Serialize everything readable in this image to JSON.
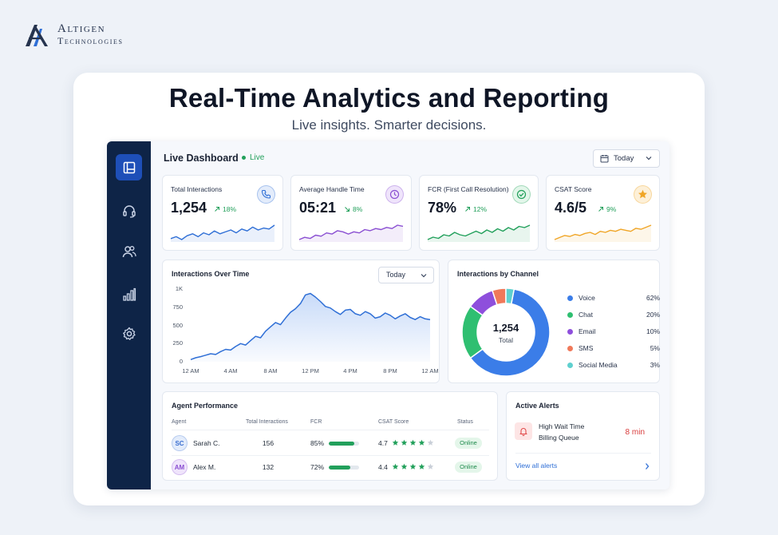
{
  "brand": {
    "line1": "Altigen",
    "line2": "Technologies"
  },
  "hero": {
    "title": "Real-Time Analytics and Reporting",
    "subtitle": "Live insights. Smarter decisions."
  },
  "dashboard": {
    "title": "Live Dashboard",
    "live_label": "Live",
    "date_filter": "Today",
    "sidebar": [
      "dashboard-icon",
      "headset-icon",
      "users-icon",
      "bar-chart-icon",
      "gear-icon"
    ]
  },
  "kpis": [
    {
      "title": "Total Interactions",
      "value": "1,254",
      "delta": "18%",
      "direction": "up",
      "icon": "phone-icon",
      "color": "#2f6fd6",
      "spark": [
        10,
        12,
        9,
        13,
        15,
        12,
        16,
        14,
        18,
        15,
        17,
        19,
        16,
        20,
        18,
        22,
        19,
        21,
        20,
        24
      ]
    },
    {
      "title": "Average Handle Time",
      "value": "05:21",
      "delta": "8%",
      "direction": "down",
      "icon": "clock-icon",
      "color": "#8a4fd2",
      "spark": [
        8,
        10,
        9,
        12,
        11,
        14,
        13,
        16,
        15,
        13,
        15,
        14,
        17,
        16,
        18,
        17,
        19,
        18,
        21,
        20
      ]
    },
    {
      "title": "FCR (First Call Resolution)",
      "value": "78%",
      "delta": "12%",
      "direction": "up",
      "icon": "check-circle-icon",
      "color": "#22a05b",
      "spark": [
        9,
        11,
        10,
        13,
        12,
        15,
        13,
        12,
        14,
        16,
        14,
        17,
        15,
        18,
        16,
        19,
        17,
        20,
        19,
        21
      ]
    },
    {
      "title": "CSAT Score",
      "value": "4.6/5",
      "delta": "9%",
      "direction": "up",
      "icon": "star-icon",
      "color": "#f0a526",
      "spark": [
        8,
        10,
        12,
        11,
        13,
        12,
        14,
        15,
        13,
        16,
        15,
        17,
        16,
        18,
        17,
        16,
        19,
        18,
        20,
        22
      ]
    }
  ],
  "interactions_over_time": {
    "title": "Interactions Over Time",
    "filter": "Today",
    "chart_data": {
      "type": "area",
      "y_ticks": [
        "1K",
        "750",
        "500",
        "250",
        "0"
      ],
      "x_ticks": [
        "12 AM",
        "4 AM",
        "8 AM",
        "12 PM",
        "4 PM",
        "8 PM",
        "12 AM"
      ],
      "ylim": [
        0,
        1000
      ],
      "xlim": [
        0,
        24
      ],
      "points": [
        [
          0,
          30
        ],
        [
          0.5,
          55
        ],
        [
          1,
          70
        ],
        [
          1.5,
          90
        ],
        [
          2,
          110
        ],
        [
          2.5,
          100
        ],
        [
          3,
          140
        ],
        [
          3.5,
          170
        ],
        [
          4,
          160
        ],
        [
          4.5,
          210
        ],
        [
          5,
          250
        ],
        [
          5.5,
          230
        ],
        [
          6,
          290
        ],
        [
          6.5,
          350
        ],
        [
          7,
          330
        ],
        [
          7.5,
          420
        ],
        [
          8,
          480
        ],
        [
          8.5,
          540
        ],
        [
          9,
          510
        ],
        [
          9.5,
          600
        ],
        [
          10,
          680
        ],
        [
          10.5,
          730
        ],
        [
          11,
          800
        ],
        [
          11.5,
          920
        ],
        [
          12,
          940
        ],
        [
          12.5,
          890
        ],
        [
          13,
          830
        ],
        [
          13.5,
          760
        ],
        [
          14,
          740
        ],
        [
          14.5,
          690
        ],
        [
          15,
          650
        ],
        [
          15.5,
          710
        ],
        [
          16,
          720
        ],
        [
          16.5,
          660
        ],
        [
          17,
          640
        ],
        [
          17.5,
          690
        ],
        [
          18,
          660
        ],
        [
          18.5,
          600
        ],
        [
          19,
          620
        ],
        [
          19.5,
          670
        ],
        [
          20,
          640
        ],
        [
          20.5,
          590
        ],
        [
          21,
          630
        ],
        [
          21.5,
          660
        ],
        [
          22,
          610
        ],
        [
          22.5,
          580
        ],
        [
          23,
          620
        ],
        [
          23.5,
          590
        ],
        [
          24,
          580
        ]
      ]
    }
  },
  "interactions_by_channel": {
    "title": "Interactions by Channel",
    "center_value": "1,254",
    "center_label": "Total",
    "chart_data": {
      "type": "pie",
      "categories": [
        "Voice",
        "Chat",
        "Email",
        "SMS",
        "Social Media"
      ],
      "values": [
        62,
        20,
        10,
        5,
        3
      ],
      "labels": [
        "62%",
        "20%",
        "10%",
        "5%",
        "3%"
      ],
      "colors": [
        "#3b7de8",
        "#2fbf71",
        "#8e4fdc",
        "#f0795a",
        "#5fd0cf"
      ]
    }
  },
  "agent_performance": {
    "title": "Agent Performance",
    "headers": [
      "Agent",
      "Total Interactions",
      "FCR",
      "CSAT Score",
      "Status"
    ],
    "rows": [
      {
        "initials": "SC",
        "name": "Sarah C.",
        "interactions": "156",
        "fcr": "85%",
        "fcr_value": 0.85,
        "csat": "4.7",
        "stars": 4,
        "status": "Online",
        "avatar_bg": "#e3ecfb",
        "avatar_fg": "#3b6fd0"
      },
      {
        "initials": "AM",
        "name": "Alex M.",
        "interactions": "132",
        "fcr": "72%",
        "fcr_value": 0.72,
        "csat": "4.4",
        "stars": 4,
        "status": "Online",
        "avatar_bg": "#efe4fb",
        "avatar_fg": "#8a4fd2"
      }
    ]
  },
  "active_alerts": {
    "title": "Active Alerts",
    "alert_title": "High Wait Time",
    "alert_sub": "Billing Queue",
    "alert_value": "8 min",
    "view_all": "View all alerts"
  }
}
